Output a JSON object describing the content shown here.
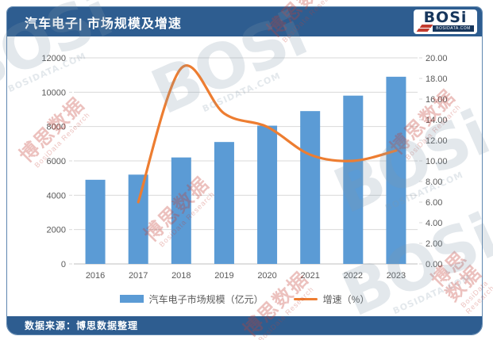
{
  "header": {
    "title": "汽车电子| 市场规模及增速",
    "logo": {
      "brand": "BOSi",
      "domain": "BOSIDATA.COM"
    }
  },
  "footer": {
    "source": "数据来源：博思数据整理"
  },
  "colors": {
    "header_bg": "#2e5d90",
    "bar": "#5B9BD5",
    "line": "#ED7D31",
    "grid": "#D9D9D9",
    "zero_line": "#BFBFBF",
    "axis_text": "#595959"
  },
  "chart_data": {
    "type": "bar+line combo",
    "categories": [
      "2016",
      "2017",
      "2018",
      "2019",
      "2020",
      "2021",
      "2022",
      "2023"
    ],
    "series": [
      {
        "name": "汽车电子市场规模（亿元）",
        "type": "bar",
        "axis": "left",
        "values": [
          4900,
          5200,
          6200,
          7100,
          8050,
          8900,
          9800,
          10900
        ]
      },
      {
        "name": "增速（%）",
        "type": "line",
        "axis": "right",
        "values": [
          null,
          6.0,
          19.0,
          14.6,
          13.3,
          10.6,
          10.0,
          11.0
        ]
      }
    ],
    "left_axis": {
      "min": 0,
      "max": 12000,
      "step": 2000,
      "decimals": 0
    },
    "right_axis": {
      "min": 0,
      "max": 20,
      "step": 2,
      "decimals": 2
    },
    "grid": true,
    "legend_position": "bottom"
  },
  "watermark": {
    "cn": "博思数据",
    "en": "BosiData Research",
    "brand": "BOSi",
    "domain": "BOSIDATA.COM"
  }
}
